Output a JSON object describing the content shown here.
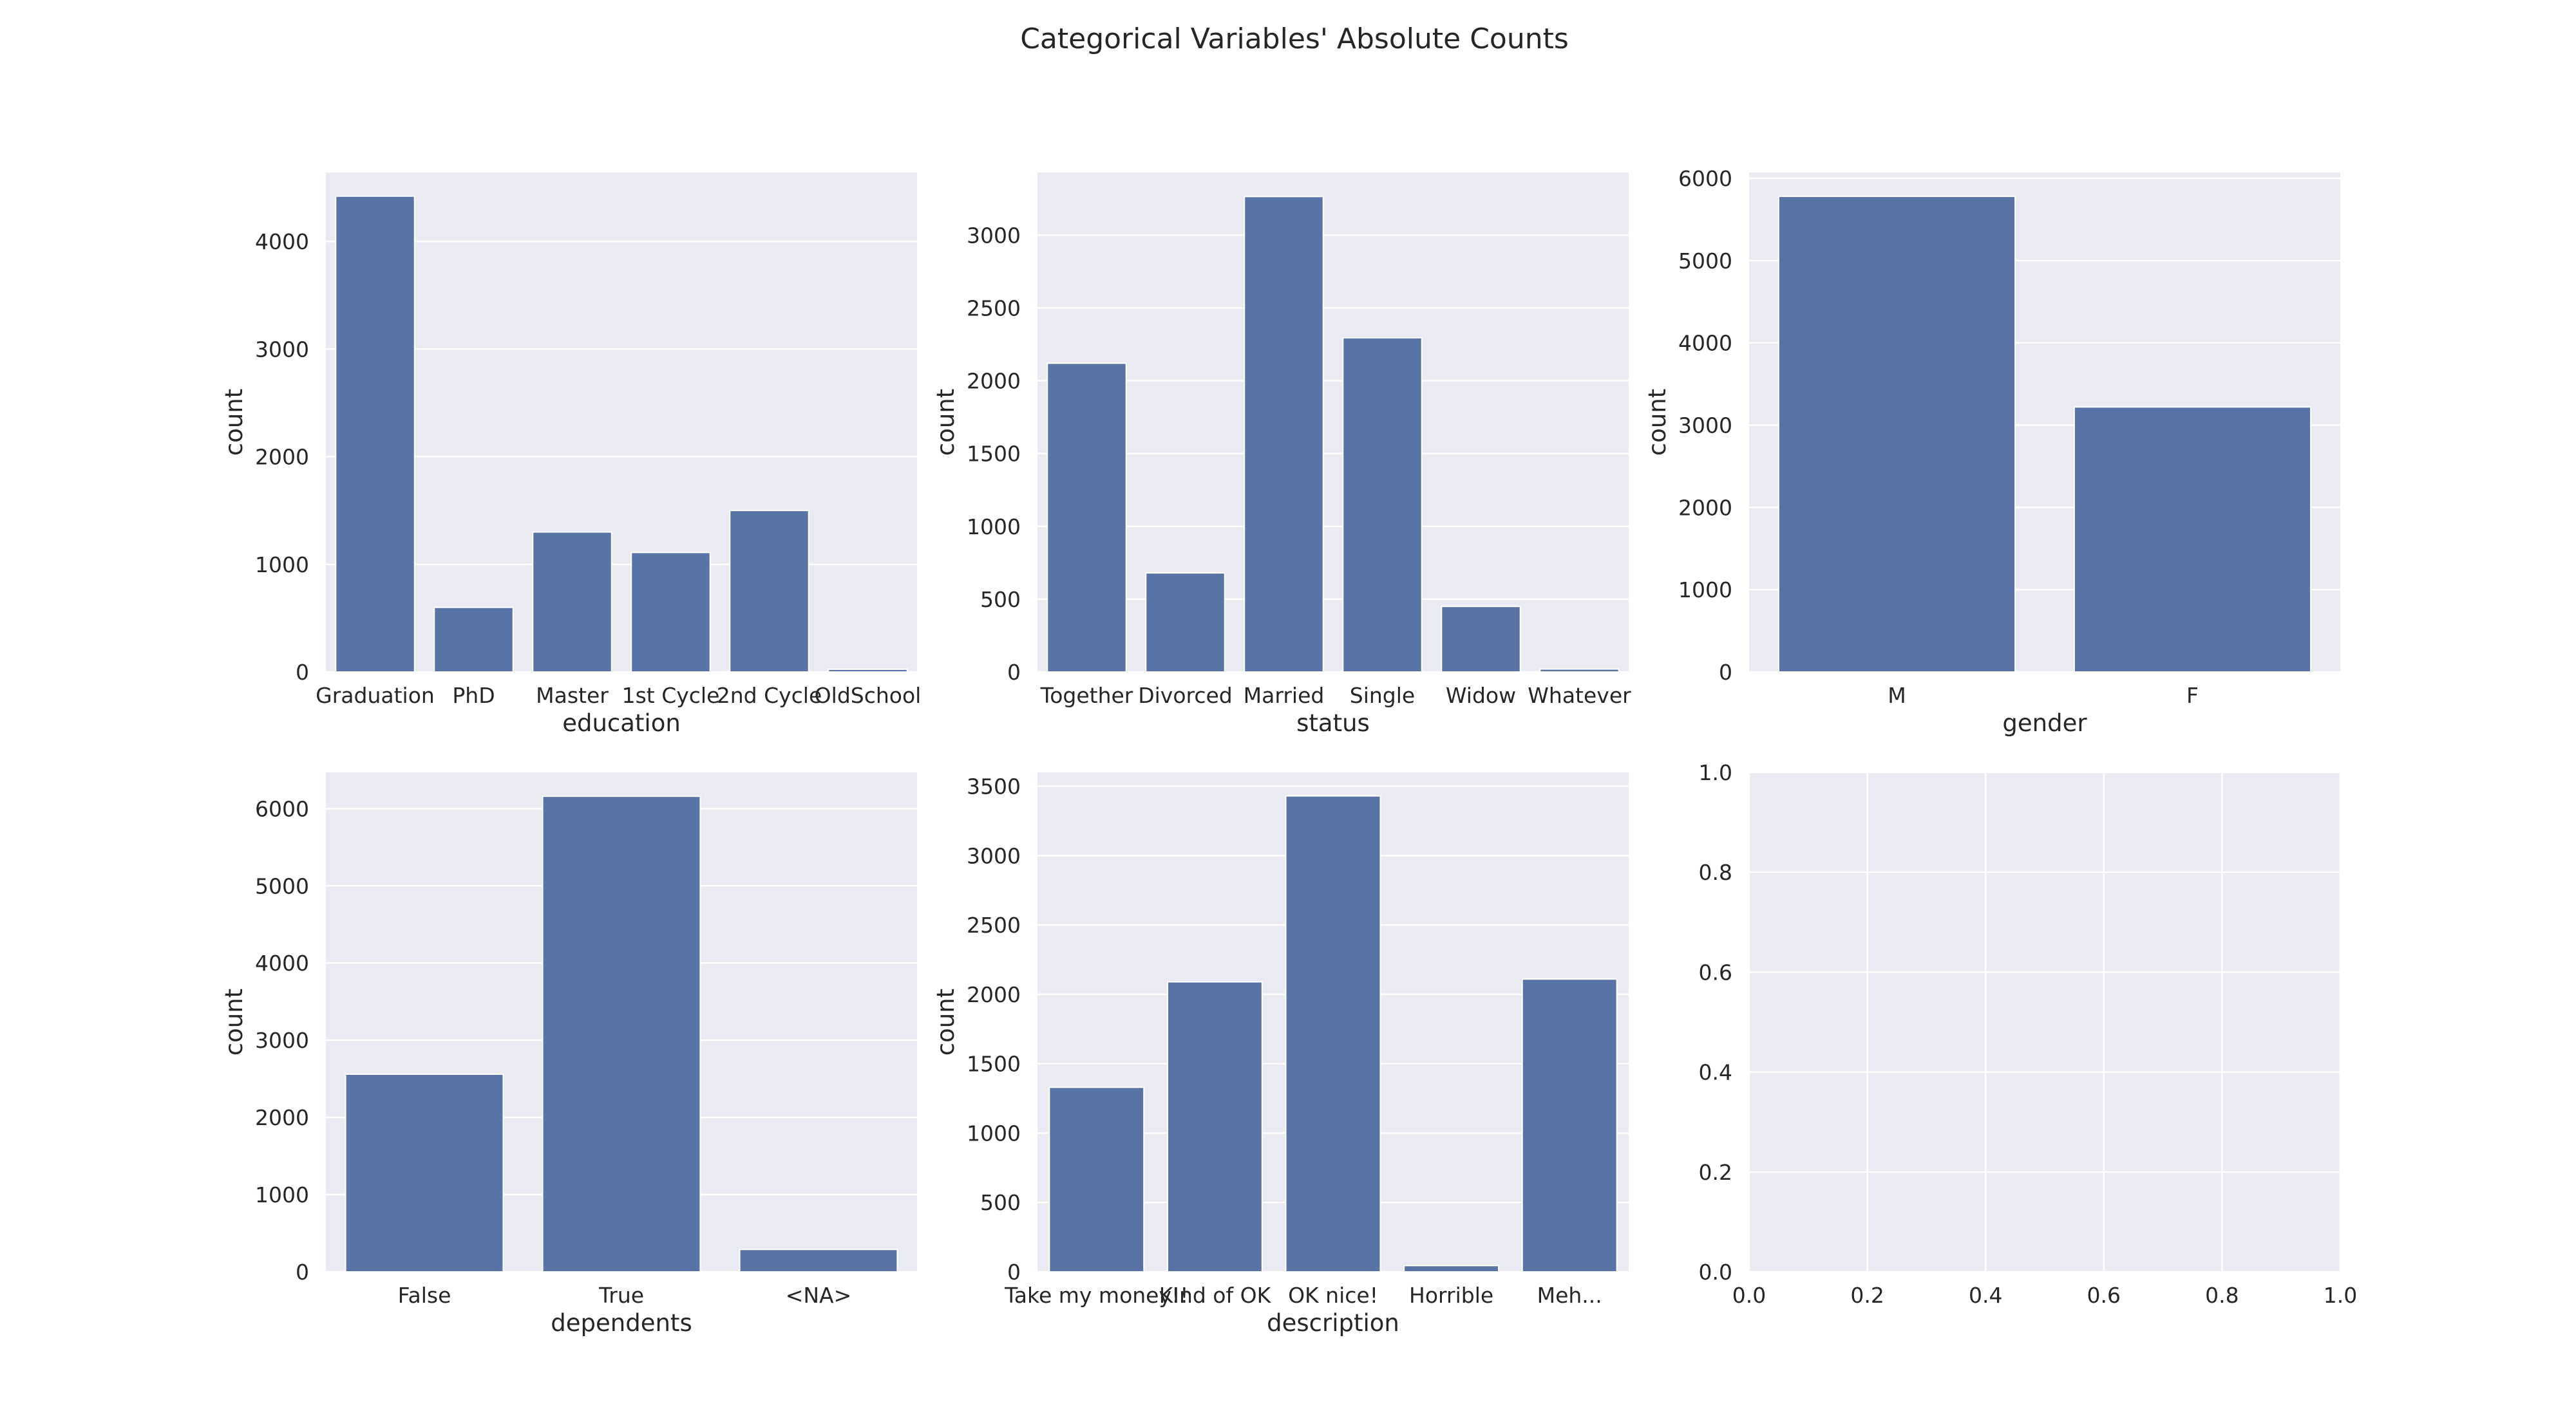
{
  "figure": {
    "title": "Categorical Variables' Absolute Counts",
    "colors": {
      "bar": "#5874a6",
      "axes_bg": "#eaeaf2",
      "grid": "#ffffff",
      "text": "#262626"
    }
  },
  "chart_data": [
    {
      "type": "bar",
      "xlabel": "education",
      "ylabel": "count",
      "categories": [
        "Graduation",
        "PhD",
        "Master",
        "1st Cycle",
        "2nd Cycle",
        "OldSchool"
      ],
      "values": [
        4420,
        600,
        1300,
        1110,
        1500,
        25
      ],
      "ylim": [
        0,
        4640
      ],
      "yticks": [
        0,
        1000,
        2000,
        3000,
        4000
      ],
      "grid": true
    },
    {
      "type": "bar",
      "xlabel": "status",
      "ylabel": "count",
      "categories": [
        "Together",
        "Divorced",
        "Married",
        "Single",
        "Widow",
        "Whatever"
      ],
      "values": [
        2120,
        680,
        3265,
        2295,
        450,
        20
      ],
      "ylim": [
        0,
        3430
      ],
      "yticks": [
        0,
        500,
        1000,
        1500,
        2000,
        2500,
        3000
      ],
      "grid": true
    },
    {
      "type": "bar",
      "xlabel": "gender",
      "ylabel": "count",
      "categories": [
        "M",
        "F"
      ],
      "values": [
        5780,
        3220
      ],
      "ylim": [
        0,
        6070
      ],
      "yticks": [
        0,
        1000,
        2000,
        3000,
        4000,
        5000,
        6000
      ],
      "grid": true
    },
    {
      "type": "bar",
      "xlabel": "dependents",
      "ylabel": "count",
      "categories": [
        "False",
        "True",
        "<NA>"
      ],
      "values": [
        2560,
        6160,
        290
      ],
      "ylim": [
        0,
        6470
      ],
      "yticks": [
        0,
        1000,
        2000,
        3000,
        4000,
        5000,
        6000
      ],
      "grid": true
    },
    {
      "type": "bar",
      "xlabel": "description",
      "ylabel": "count",
      "categories": [
        "Take my money!!",
        "KInd of OK",
        "OK nice!",
        "Horrible",
        "Meh..."
      ],
      "values": [
        1330,
        2090,
        3430,
        45,
        2110
      ],
      "ylim": [
        0,
        3600
      ],
      "yticks": [
        0,
        500,
        1000,
        1500,
        2000,
        2500,
        3000,
        3500
      ],
      "grid": true
    },
    {
      "type": "bar",
      "xlabel": "",
      "ylabel": "",
      "categories": [],
      "values": [],
      "xlim": [
        0,
        1
      ],
      "ylim": [
        0,
        1
      ],
      "xticks": [
        "0.0",
        "0.2",
        "0.4",
        "0.6",
        "0.8",
        "1.0"
      ],
      "yticks": [
        "0.0",
        "0.2",
        "0.4",
        "0.6",
        "0.8",
        "1.0"
      ],
      "grid": true
    }
  ]
}
